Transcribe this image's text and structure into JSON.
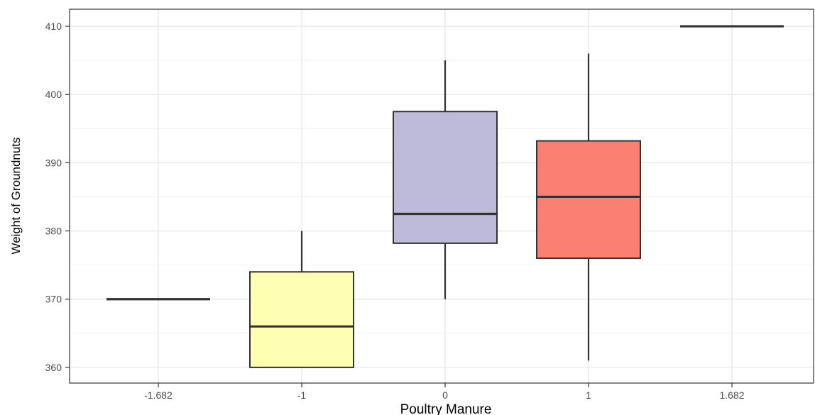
{
  "chart_data": {
    "type": "boxplot",
    "xlabel": "Poultry Manure",
    "ylabel": "Weight of Groundnuts",
    "categories": [
      "-1.682",
      "-1",
      "0",
      "1",
      "1.682"
    ],
    "ylim": [
      357.7,
      412.5
    ],
    "yticks": [
      360,
      370,
      380,
      390,
      400,
      410
    ],
    "grid": true,
    "boxes": [
      {
        "category": "-1.682",
        "min": 370,
        "q1": 370,
        "median": 370,
        "q3": 370,
        "max": 370,
        "fill": "#8DD3C7"
      },
      {
        "category": "-1",
        "min": 360,
        "q1": 360,
        "median": 366,
        "q3": 374,
        "max": 380,
        "fill": "#FFFFB3"
      },
      {
        "category": "0",
        "min": 370,
        "q1": 378.2,
        "median": 382.5,
        "q3": 397.5,
        "max": 405,
        "fill": "#BEBADA"
      },
      {
        "category": "1",
        "min": 361,
        "q1": 376,
        "median": 385,
        "q3": 393.2,
        "max": 406,
        "fill": "#FB8072"
      },
      {
        "category": "1.682",
        "min": 410,
        "q1": 410,
        "median": 410,
        "q3": 410,
        "max": 410,
        "fill": "#80B1D3"
      }
    ]
  }
}
